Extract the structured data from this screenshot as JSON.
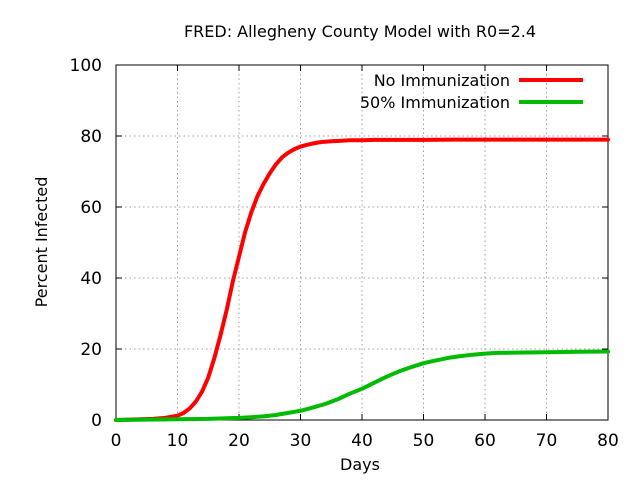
{
  "chart_data": {
    "type": "line",
    "title": "FRED: Allegheny County Model with R0=2.4",
    "xlabel": "Days",
    "ylabel": "Percent Infected",
    "xlim": [
      0,
      80
    ],
    "ylim": [
      0,
      100
    ],
    "xticks": [
      "0",
      "10",
      "20",
      "30",
      "40",
      "50",
      "60",
      "70",
      "80"
    ],
    "yticks": [
      "0",
      "20",
      "40",
      "60",
      "80",
      "100"
    ],
    "grid": true,
    "legend_position": "top-right",
    "series": [
      {
        "name": "No Immunization",
        "color": "#ff0000",
        "x": [
          0,
          2,
          4,
          6,
          8,
          10,
          11,
          12,
          13,
          14,
          15,
          16,
          17,
          18,
          19,
          20,
          21,
          22,
          23,
          24,
          25,
          26,
          27,
          28,
          29,
          30,
          31,
          32,
          33,
          34,
          35,
          36,
          37,
          38,
          40,
          42,
          45,
          50,
          55,
          60,
          65,
          70,
          75,
          80
        ],
        "y": [
          0,
          0.1,
          0.2,
          0.3,
          0.6,
          1.2,
          2.0,
          3.3,
          5.2,
          8.0,
          12,
          17.5,
          24,
          31,
          39,
          46,
          53,
          58.5,
          63,
          66.5,
          69.5,
          72,
          74,
          75.3,
          76.3,
          77,
          77.5,
          77.9,
          78.2,
          78.4,
          78.5,
          78.6,
          78.7,
          78.8,
          78.8,
          78.9,
          78.9,
          78.9,
          79,
          79,
          79,
          79,
          79,
          79
        ]
      },
      {
        "name": "50% Immunization",
        "color": "#00bb00",
        "x": [
          0,
          5,
          10,
          15,
          18,
          20,
          22,
          24,
          26,
          28,
          30,
          32,
          34,
          36,
          38,
          40,
          42,
          44,
          46,
          48,
          50,
          52,
          54,
          56,
          58,
          60,
          62,
          65,
          70,
          75,
          80
        ],
        "y": [
          0,
          0.1,
          0.2,
          0.3,
          0.5,
          0.6,
          0.8,
          1.0,
          1.4,
          2.0,
          2.6,
          3.5,
          4.5,
          5.8,
          7.4,
          8.8,
          10.5,
          12.2,
          13.7,
          14.9,
          16.0,
          16.8,
          17.5,
          18.0,
          18.4,
          18.7,
          18.9,
          19.0,
          19.1,
          19.2,
          19.3
        ]
      }
    ]
  }
}
